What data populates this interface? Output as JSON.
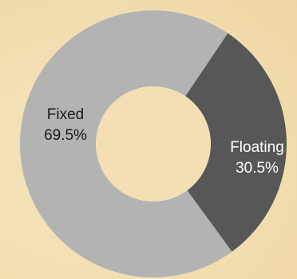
{
  "chart_data": {
    "type": "pie",
    "variant": "donut",
    "title": "",
    "slices": [
      {
        "label": "Fixed",
        "value": 69.5,
        "value_label": "69.5%",
        "color": "#b3b3b3",
        "text_color": "#1a1a1a"
      },
      {
        "label": "Floating",
        "value": 30.5,
        "value_label": "30.5%",
        "color": "#575757",
        "text_color": "#ffffff"
      }
    ],
    "legend": "none",
    "background_color": "#f3dfb3"
  }
}
